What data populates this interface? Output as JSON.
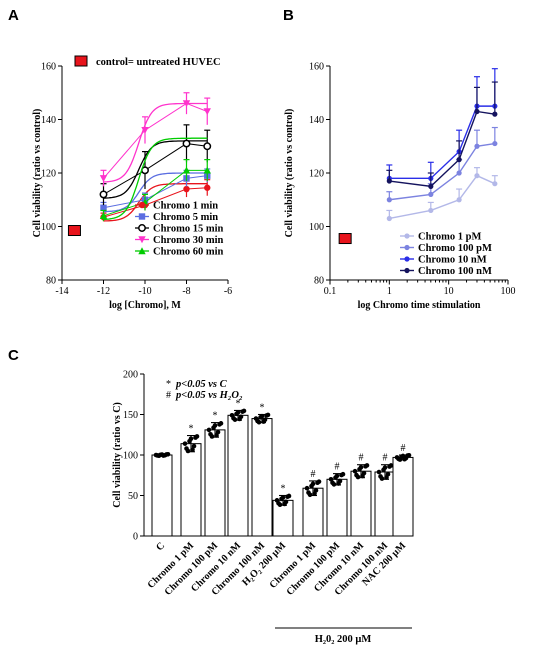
{
  "panels": {
    "A": "A",
    "B": "B",
    "C": "C"
  },
  "chart_data": [
    {
      "id": "A",
      "type": "scatter",
      "xlabel": "log [Chromo], M",
      "ylabel": "Cell viability (ratio vs control)",
      "xlim": [
        -14,
        -6
      ],
      "ylim": [
        80,
        160
      ],
      "xticks": [
        -14,
        -12,
        -10,
        -8,
        -6
      ],
      "yticks": [
        80,
        100,
        120,
        140,
        160
      ],
      "legend_position": "bottom-right",
      "control_label": "control= untreated HUVEC",
      "control_point": {
        "x": -13.4,
        "y": 98.5,
        "color": "#e8141c"
      },
      "x": [
        -12,
        -10,
        -8,
        -7
      ],
      "series": [
        {
          "name": "Chromo 1 min",
          "color": "#e8141c",
          "marker": "circle",
          "values": [
            103.5,
            108,
            114,
            114.5
          ],
          "errors": [
            1.5,
            2,
            3,
            3
          ],
          "fit_top": 116
        },
        {
          "name": "Chromo 5 min",
          "color": "#5b6ee1",
          "marker": "square",
          "values": [
            107,
            110,
            118,
            119
          ],
          "errors": [
            2,
            2.5,
            3,
            2.5
          ],
          "fit_top": 120
        },
        {
          "name": "Chromo 15 min",
          "color": "#000000",
          "marker": "circle-open",
          "values": [
            112,
            121,
            131,
            130
          ],
          "errors": [
            4,
            7,
            7,
            6
          ],
          "fit_top": 132
        },
        {
          "name": "Chromo 30 min",
          "color": "#ff33cc",
          "marker": "triangle-down",
          "values": [
            118,
            136,
            146,
            143
          ],
          "errors": [
            3,
            5,
            4,
            5
          ],
          "fit_top": 146
        },
        {
          "name": "Chromo 60 min",
          "color": "#00cc00",
          "marker": "triangle",
          "values": [
            104,
            109,
            121,
            121
          ],
          "errors": [
            2,
            3,
            4,
            4
          ],
          "fit_top": 133
        }
      ]
    },
    {
      "id": "B",
      "type": "line",
      "xscale": "log",
      "xlabel": "log Chromo time stimulation",
      "ylabel": "Cell viability (ratio vs control)",
      "xlim": [
        0.1,
        100
      ],
      "ylim": [
        80,
        160
      ],
      "xticks": [
        0.1,
        1,
        10,
        100
      ],
      "xtick_labels": [
        "0.1",
        "1",
        "10",
        "100"
      ],
      "yticks": [
        80,
        100,
        120,
        140,
        160
      ],
      "legend_position": "bottom-right",
      "control_point": {
        "x": 0.18,
        "y": 95.5,
        "color": "#e8141c"
      },
      "x": [
        1,
        5,
        15,
        30,
        60
      ],
      "series": [
        {
          "name": "Chromo 1 pM",
          "color": "#b3b8e8",
          "values": [
            103,
            106,
            110,
            119,
            116
          ],
          "errors": [
            3,
            3,
            4,
            3,
            3
          ]
        },
        {
          "name": "Chromo 100 pM",
          "color": "#7c83e0",
          "values": [
            110,
            112,
            120,
            130,
            131
          ],
          "errors": [
            3,
            4,
            5,
            6,
            6
          ]
        },
        {
          "name": "Chromo 10 nM",
          "color": "#2a2ee8",
          "values": [
            118,
            118,
            128,
            145,
            145
          ],
          "errors": [
            5,
            6,
            8,
            11,
            14
          ]
        },
        {
          "name": "Chromo 100 nM",
          "color": "#14135e",
          "values": [
            117,
            115,
            125,
            143,
            142
          ],
          "errors": [
            4,
            5,
            7,
            9,
            12
          ]
        }
      ]
    },
    {
      "id": "C",
      "type": "bar",
      "ylabel": "Cell viability (ratio vs C)",
      "ylim": [
        0,
        200
      ],
      "yticks": [
        0,
        50,
        100,
        150,
        200
      ],
      "categories": [
        "C",
        "Chromo 1 pM",
        "Chromo 100 pM",
        "Chromo 10 nM",
        "Chromo 100 nM",
        "H₂O₂ 200 μM",
        "Chromo 1 pM",
        "Chromo 100 pM",
        "Chromo 10 nM",
        "Chromo 100 nM",
        "NAC 200 μM"
      ],
      "values": [
        100,
        114,
        131,
        149,
        145,
        44,
        59,
        70,
        80,
        79,
        97
      ],
      "errors": [
        1,
        10,
        9,
        6,
        5,
        6,
        9,
        7,
        8,
        9,
        3
      ],
      "significance": [
        "",
        "*",
        "*",
        "*",
        "*",
        "*",
        "#",
        "#",
        "#",
        "#",
        "#"
      ],
      "legend": [
        {
          "symbol": "*",
          "text": "p<0.05 vs C"
        },
        {
          "symbol": "#",
          "text": "p<0.05 vs H₂O₂"
        }
      ],
      "group_label": "H₂0₂ 200 μM"
    }
  ]
}
